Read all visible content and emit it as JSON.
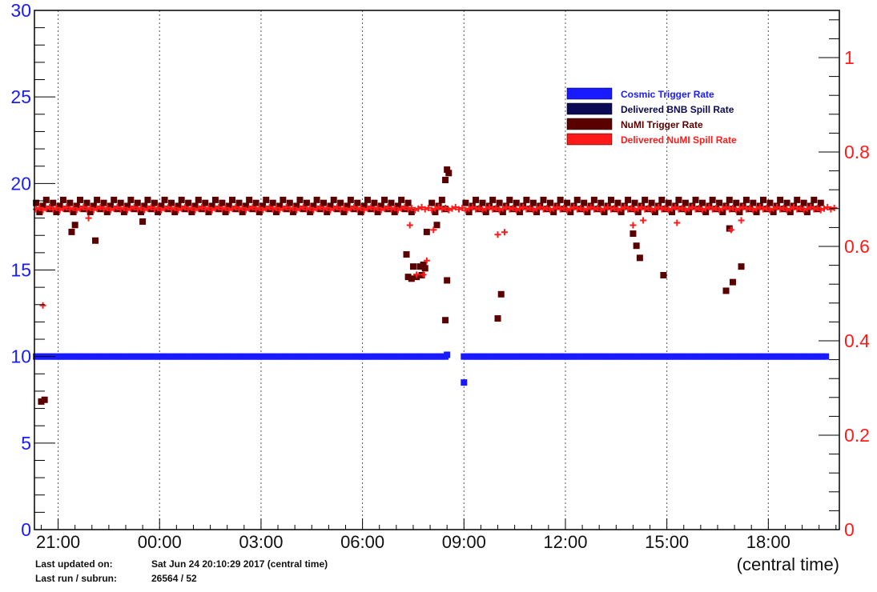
{
  "chart_data": {
    "type": "scatter",
    "xlabel": "(central time)",
    "x_tick_labels": [
      "21:00",
      "00:00",
      "03:00",
      "06:00",
      "09:00",
      "12:00",
      "15:00",
      "18:00"
    ],
    "x_range": [
      20.3,
      44.1
    ],
    "left_axis": {
      "ylim": [
        0,
        30
      ],
      "ticks": [
        "0",
        "5",
        "10",
        "15",
        "20",
        "25",
        "30"
      ],
      "color": "#1a1aff"
    },
    "right_axis": {
      "ylim": [
        0,
        1.1
      ],
      "ticks": [
        "0",
        "0.2",
        "0.4",
        "0.6",
        "0.8",
        "1"
      ],
      "color": "#ff1a1a"
    },
    "grid": "vertical dotted at x ticks",
    "legend": {
      "placement": "top-right",
      "entries": [
        {
          "label": "Cosmic Trigger Rate",
          "color": "#1a1aff"
        },
        {
          "label": "Delivered BNB Spill Rate",
          "color": "#0a0a55"
        },
        {
          "label": "NuMI Trigger Rate",
          "color": "#5a0000"
        },
        {
          "label": "Delivered NuMI Spill Rate",
          "color": "#ff1a1a"
        }
      ]
    },
    "series": [
      {
        "name": "Cosmic Trigger Rate",
        "axis": "left",
        "marker": "square",
        "color": "#1a1aff",
        "baseline": {
          "y": 10.0,
          "segments": [
            [
              20.35,
              32.55
            ],
            [
              33.0,
              43.8
            ]
          ]
        },
        "points": [
          [
            32.5,
            10.1
          ],
          [
            33.0,
            8.5
          ]
        ]
      },
      {
        "name": "NuMI Trigger Rate",
        "axis": "left",
        "marker": "square",
        "color": "#5a0000",
        "baseline": {
          "y": 18.7,
          "spread": 0.35,
          "segments": [
            [
              20.35,
              31.55
            ],
            [
              32.05,
              32.45
            ],
            [
              33.05,
              43.65
            ]
          ]
        },
        "points": [
          [
            20.5,
            7.4
          ],
          [
            20.6,
            7.5
          ],
          [
            21.4,
            17.2
          ],
          [
            21.5,
            17.6
          ],
          [
            22.1,
            16.7
          ],
          [
            23.5,
            17.8
          ],
          [
            31.3,
            15.9
          ],
          [
            31.35,
            14.6
          ],
          [
            31.45,
            14.5
          ],
          [
            31.5,
            15.2
          ],
          [
            31.6,
            14.6
          ],
          [
            31.7,
            15.2
          ],
          [
            31.75,
            14.7
          ],
          [
            31.8,
            15.3
          ],
          [
            31.85,
            15.1
          ],
          [
            31.9,
            17.2
          ],
          [
            32.2,
            17.6
          ],
          [
            32.45,
            20.2
          ],
          [
            32.5,
            20.8
          ],
          [
            32.55,
            20.6
          ],
          [
            32.5,
            14.4
          ],
          [
            32.45,
            12.1
          ],
          [
            34.0,
            12.2
          ],
          [
            34.1,
            13.6
          ],
          [
            38.0,
            17.1
          ],
          [
            38.1,
            16.4
          ],
          [
            38.2,
            15.7
          ],
          [
            38.9,
            14.7
          ],
          [
            40.75,
            13.8
          ],
          [
            40.95,
            14.3
          ],
          [
            41.2,
            15.2
          ],
          [
            40.85,
            17.4
          ]
        ]
      },
      {
        "name": "Delivered NuMI Spill Rate",
        "axis": "right",
        "marker": "plus",
        "color": "#ff1a1a",
        "baseline": {
          "y": 0.68,
          "spread": 0.003,
          "segments": [
            [
              20.35,
              44.0
            ]
          ]
        },
        "points": [
          [
            20.55,
            0.475
          ],
          [
            21.9,
            0.66
          ],
          [
            31.4,
            0.645
          ],
          [
            31.6,
            0.54
          ],
          [
            31.8,
            0.54
          ],
          [
            31.9,
            0.57
          ],
          [
            32.1,
            0.635
          ],
          [
            34.0,
            0.625
          ],
          [
            34.2,
            0.63
          ],
          [
            38.0,
            0.645
          ],
          [
            38.3,
            0.655
          ],
          [
            39.3,
            0.65
          ],
          [
            40.9,
            0.635
          ],
          [
            41.2,
            0.655
          ]
        ]
      }
    ]
  },
  "footer": {
    "updated_label": "Last updated on:",
    "updated_value": "Sat Jun 24 20:10:29 2017 (central time)",
    "run_label": "Last run / subrun:",
    "run_value": "26564 / 52"
  }
}
